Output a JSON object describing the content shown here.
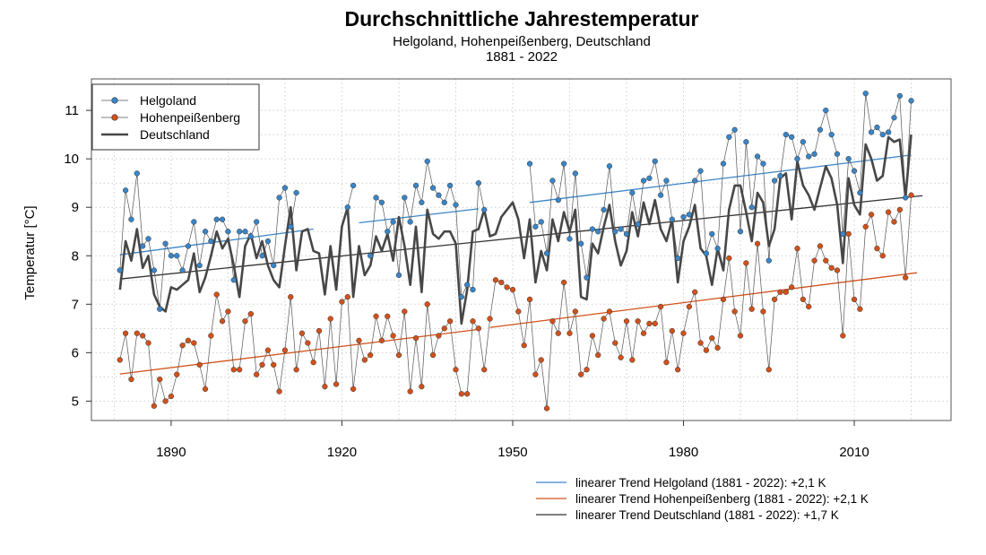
{
  "chart_data": {
    "type": "line",
    "title": "Durchschnittliche Jahrestemperatur",
    "subtitle": "Helgoland, Hohenpeißenberg, Deutschland",
    "subtitle2": "1881 - 2022",
    "ylabel": "Temperatur [°C]",
    "xlim": [
      1876,
      2027
    ],
    "ylim": [
      4.6,
      11.65
    ],
    "xticks": [
      1890,
      1920,
      1950,
      1980,
      2010
    ],
    "yticks": [
      5,
      6,
      7,
      8,
      9,
      10,
      11
    ],
    "grid": true,
    "legend_position": "top-left",
    "legend": [
      {
        "name": "Helgoland",
        "style": "line-points",
        "color": "#3a85c6"
      },
      {
        "name": "Hohenpeißenberg",
        "style": "line-points",
        "color": "#d2511a"
      },
      {
        "name": "Deutschland",
        "style": "thick-line",
        "color": "#474747"
      }
    ],
    "series": [
      {
        "name": "Helgoland",
        "color": "#3a85c6",
        "start_year": 1881,
        "values": [
          7.7,
          9.35,
          8.75,
          9.7,
          8.2,
          8.35,
          7.7,
          6.9,
          8.25,
          8.0,
          8.0,
          7.7,
          8.2,
          8.7,
          7.8,
          8.5,
          8.3,
          8.75,
          8.75,
          8.5,
          7.5,
          8.5,
          8.5,
          8.4,
          8.7,
          8.0,
          8.3,
          7.8,
          9.2,
          9.4,
          8.6,
          9.3,
          null,
          null,
          null,
          null,
          null,
          null,
          null,
          null,
          9.0,
          9.45,
          null,
          null,
          8.0,
          9.2,
          9.1,
          8.5,
          8.7,
          7.6,
          9.2,
          8.7,
          9.45,
          9.1,
          9.95,
          9.4,
          9.25,
          9.1,
          9.45,
          9.05,
          7.15,
          7.4,
          7.3,
          9.5,
          8.95,
          null,
          null,
          null,
          null,
          null,
          null,
          null,
          9.9,
          8.6,
          8.7,
          8.05,
          9.55,
          9.15,
          9.9,
          8.35,
          9.7,
          8.25,
          7.55,
          8.55,
          8.5,
          8.95,
          9.85,
          8.5,
          8.55,
          8.45,
          9.3,
          8.65,
          9.55,
          9.6,
          9.95,
          9.25,
          9.55,
          8.75,
          7.95,
          8.8,
          8.85,
          9.55,
          9.75,
          8.05,
          8.45,
          8.15,
          9.9,
          10.45,
          10.6,
          8.5,
          10.35,
          9.0,
          10.05,
          9.9,
          7.9,
          9.55,
          9.65,
          10.5,
          10.45,
          10.0,
          10.35,
          10.05,
          10.1,
          10.6,
          11.0,
          10.5,
          10.1,
          8.45,
          10.0,
          9.75,
          9.3,
          11.35,
          10.55,
          10.65,
          10.5,
          10.55,
          10.85,
          11.3,
          9.2,
          11.2
        ],
        "trend_segments": [
          {
            "x": [
              1881,
              1915
            ],
            "y": [
              8.02,
              8.55
            ]
          },
          {
            "x": [
              1923,
              1944
            ],
            "y": [
              8.68,
              8.97
            ]
          },
          {
            "x": [
              1953,
              2020
            ],
            "y": [
              9.1,
              10.08
            ]
          }
        ],
        "trend_label": "linearer Trend Helgoland (1881 - 2022): +2,1 K"
      },
      {
        "name": "Hohenpeißenberg",
        "color": "#d2511a",
        "start_year": 1881,
        "values": [
          5.85,
          6.4,
          5.45,
          6.4,
          6.35,
          6.2,
          4.9,
          5.45,
          5.0,
          5.1,
          5.55,
          6.15,
          6.25,
          6.2,
          5.75,
          5.25,
          6.35,
          7.2,
          6.65,
          6.85,
          5.65,
          5.65,
          6.65,
          6.8,
          5.55,
          5.75,
          6.05,
          5.75,
          5.2,
          6.05,
          7.15,
          5.65,
          6.4,
          6.2,
          5.8,
          6.45,
          5.3,
          6.7,
          5.35,
          7.05,
          7.15,
          5.25,
          6.25,
          5.85,
          5.95,
          6.75,
          6.25,
          6.75,
          6.35,
          5.95,
          6.85,
          5.2,
          6.3,
          5.3,
          7.0,
          5.95,
          6.35,
          6.5,
          6.65,
          5.65,
          5.15,
          5.15,
          6.65,
          6.5,
          5.65,
          6.7,
          7.5,
          7.45,
          7.35,
          7.3,
          6.85,
          6.15,
          7.1,
          5.55,
          5.85,
          4.85,
          6.65,
          6.4,
          7.45,
          6.4,
          6.85,
          5.55,
          5.65,
          6.35,
          5.95,
          6.7,
          6.85,
          6.2,
          5.9,
          6.65,
          5.85,
          6.65,
          6.4,
          6.6,
          6.6,
          6.95,
          5.8,
          6.45,
          5.65,
          6.4,
          6.95,
          7.25,
          6.2,
          6.05,
          6.3,
          6.1,
          7.1,
          7.95,
          6.85,
          6.35,
          7.85,
          6.9,
          8.25,
          6.85,
          5.65,
          7.1,
          7.25,
          7.25,
          7.35,
          8.15,
          7.1,
          6.95,
          7.9,
          8.2,
          7.9,
          7.75,
          7.7,
          6.35,
          8.45,
          7.1,
          6.9,
          8.6,
          8.85,
          8.15,
          8.0,
          8.9,
          8.7,
          8.95,
          7.55,
          9.25,
          null,
          null
        ],
        "trend_segments": [
          {
            "x": [
              1881,
              1944
            ],
            "y": [
              5.56,
              6.48
            ]
          },
          {
            "x": [
              1946,
              2021
            ],
            "y": [
              6.52,
              7.65
            ]
          }
        ],
        "trend_label": "linearer Trend Hohenpeißenberg (1881 - 2022): +2,1 K"
      },
      {
        "name": "Deutschland",
        "color": "#474747",
        "start_year": 1881,
        "values": [
          7.3,
          8.3,
          7.9,
          8.55,
          7.75,
          8.0,
          7.2,
          6.95,
          6.85,
          7.35,
          7.3,
          7.4,
          7.5,
          8.05,
          7.25,
          7.55,
          8.0,
          8.5,
          8.15,
          8.35,
          7.8,
          7.15,
          8.2,
          8.45,
          7.95,
          8.3,
          7.8,
          7.5,
          7.35,
          8.2,
          9.0,
          7.7,
          8.5,
          8.55,
          8.1,
          8.05,
          7.2,
          8.2,
          7.3,
          8.6,
          9.0,
          7.15,
          8.2,
          7.6,
          7.8,
          8.4,
          8.1,
          8.45,
          7.9,
          8.8,
          8.2,
          7.4,
          8.6,
          7.25,
          8.95,
          8.45,
          8.35,
          8.5,
          8.5,
          8.25,
          6.6,
          7.3,
          8.5,
          8.55,
          8.95,
          8.4,
          8.45,
          8.8,
          8.95,
          9.1,
          8.75,
          7.95,
          8.75,
          7.45,
          8.1,
          7.7,
          8.75,
          8.3,
          8.9,
          8.5,
          8.95,
          7.15,
          7.1,
          8.25,
          8.05,
          8.6,
          9.05,
          8.3,
          7.8,
          8.1,
          8.9,
          8.4,
          9.1,
          8.65,
          9.15,
          8.55,
          8.3,
          8.75,
          7.45,
          8.3,
          8.6,
          9.05,
          8.15,
          8.0,
          7.4,
          8.15,
          7.7,
          8.95,
          9.45,
          9.45,
          8.9,
          8.3,
          9.3,
          9.1,
          8.2,
          8.55,
          9.6,
          9.7,
          8.75,
          9.95,
          9.45,
          9.25,
          8.95,
          9.4,
          9.85,
          9.6,
          9.05,
          7.85,
          9.6,
          9.05,
          8.85,
          10.3,
          10.0,
          9.55,
          9.65,
          10.45,
          10.35,
          10.4,
          9.2,
          10.5,
          null,
          null
        ],
        "trend_segments": [
          {
            "x": [
              1881,
              2022
            ],
            "y": [
              7.52,
              9.24
            ]
          }
        ],
        "trend_label": "linearer Trend Deutschland (1881 - 2022): +1,7 K"
      }
    ]
  }
}
